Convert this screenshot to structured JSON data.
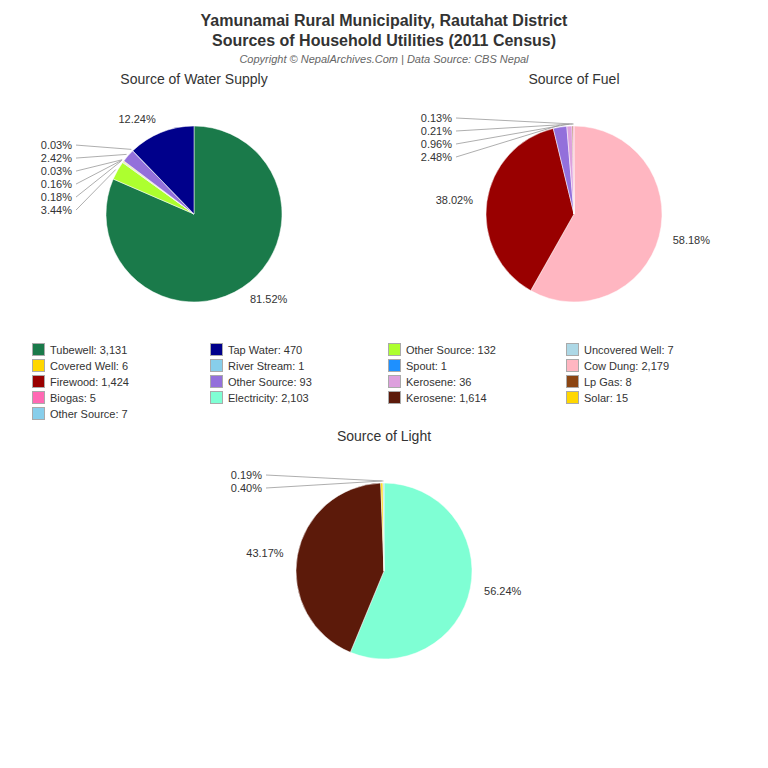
{
  "title": "Yamunamai Rural Municipality, Rautahat District",
  "subtitle": "Sources of Household Utilities (2011 Census)",
  "annotations": [
    "Copyright © NepalArchives.Com | Data Source: CBS Nepal"
  ],
  "series": [
    {
      "name": "Tubewell: 3,131",
      "color": "#1a7a4a"
    },
    {
      "name": "Tap Water: 470",
      "color": "#00008b"
    },
    {
      "name": "Other Source: 132",
      "color": "#adff2f"
    },
    {
      "name": "Uncovered Well: 7",
      "color": "#add8e6"
    },
    {
      "name": "Covered Well: 6",
      "color": "#ffd700"
    },
    {
      "name": "River Stream: 1",
      "color": "#87ceeb"
    },
    {
      "name": "Spout: 1",
      "color": "#1e90ff"
    },
    {
      "name": "Cow Dung: 2,179",
      "color": "#ffb6c1"
    },
    {
      "name": "Firewood: 1,424",
      "color": "#990000"
    },
    {
      "name": "Other Source: 93",
      "color": "#9370db"
    },
    {
      "name": "Kerosene: 36",
      "color": "#dda0dd"
    },
    {
      "name": "Lp Gas: 8",
      "color": "#8b4513"
    },
    {
      "name": "Biogas: 5",
      "color": "#ff69b4"
    },
    {
      "name": "Electricity: 2,103",
      "color": "#7fffd4"
    },
    {
      "name": "Kerosene: 1,614",
      "color": "#5c1a0a"
    },
    {
      "name": "Solar: 15",
      "color": "#ffd700"
    },
    {
      "name": "Other Source: 7",
      "color": "#87ceeb"
    }
  ],
  "chart_data": [
    {
      "type": "pie",
      "title": "Source of Water Supply",
      "values": [
        81.52,
        3.44,
        0.18,
        0.16,
        0.03,
        2.42,
        0.03,
        12.24
      ],
      "value_labels": [
        "81.52%",
        "3.44%",
        "0.18%",
        "0.16%",
        "0.03%",
        "2.42%",
        "0.03%",
        "12.24%"
      ],
      "colors": [
        "#1a7a4a",
        "#adff2f",
        "#add8e6",
        "#ffd700",
        "#87ceeb",
        "#9370db",
        "#1e90ff",
        "#00008b"
      ]
    },
    {
      "type": "pie",
      "title": "Source of Fuel",
      "values": [
        58.18,
        38.02,
        2.48,
        0.96,
        0.21,
        0.13
      ],
      "value_labels": [
        "58.18%",
        "38.02%",
        "2.48%",
        "0.96%",
        "0.21%",
        "0.13%"
      ],
      "colors": [
        "#ffb6c1",
        "#990000",
        "#9370db",
        "#dda0dd",
        "#8b4513",
        "#ff69b4"
      ]
    },
    {
      "type": "pie",
      "title": "Source of Light",
      "values": [
        56.24,
        43.17,
        0.4,
        0.19
      ],
      "value_labels": [
        "56.24%",
        "43.17%",
        "0.40%",
        "0.19%"
      ],
      "colors": [
        "#7fffd4",
        "#5c1a0a",
        "#ffd700",
        "#add8e6"
      ]
    }
  ]
}
